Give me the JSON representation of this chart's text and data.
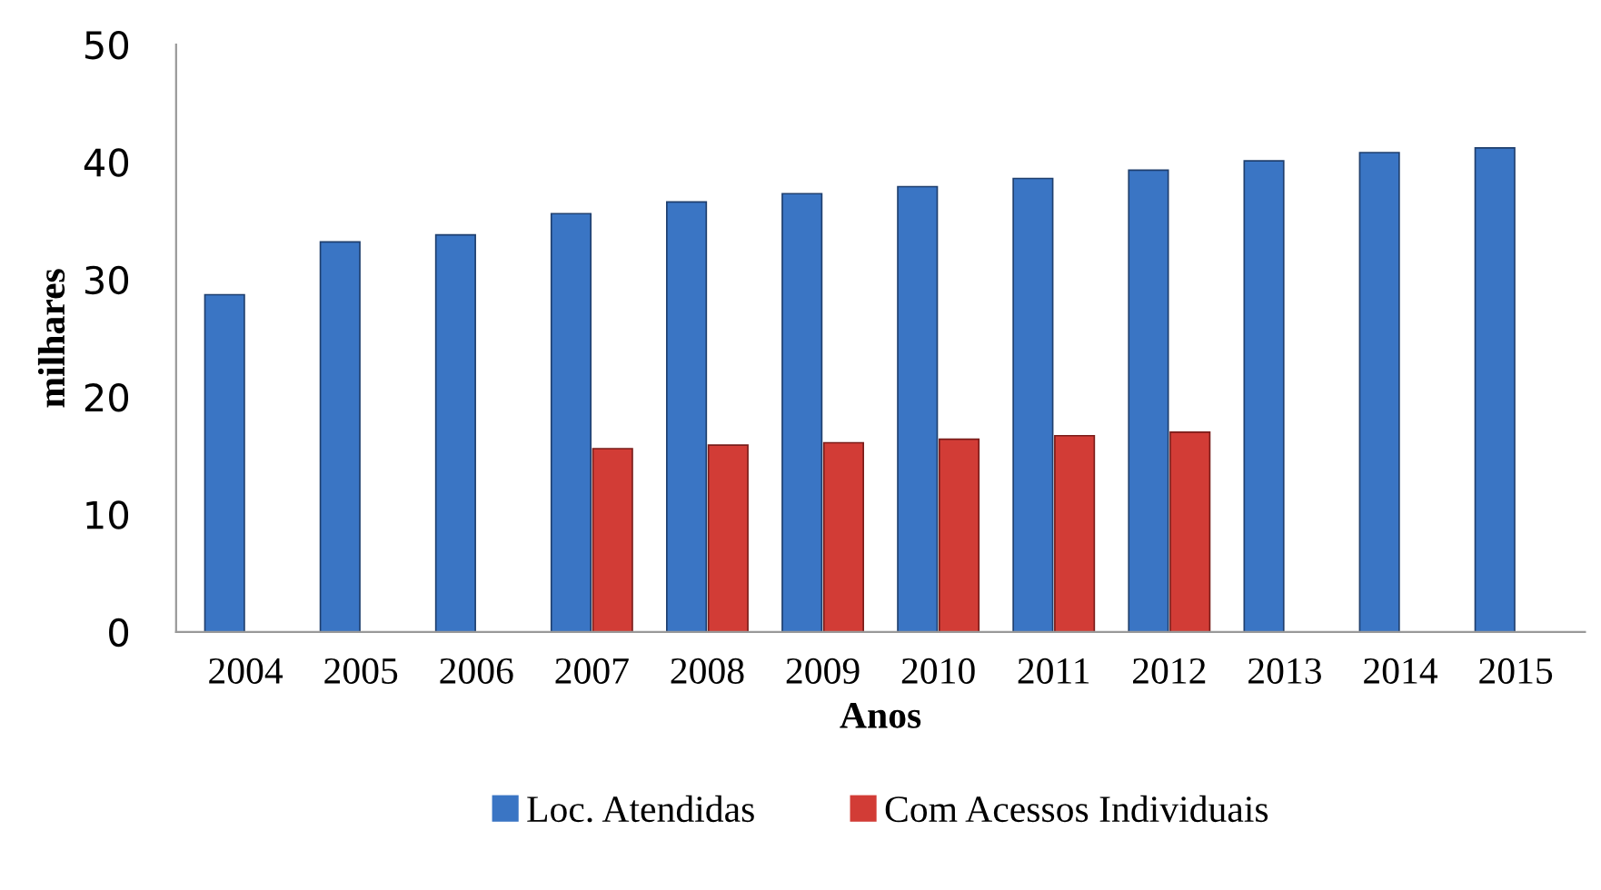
{
  "chart_data": {
    "type": "bar",
    "xlabel": "Anos",
    "ylabel": "milhares",
    "categories": [
      "2004",
      "2005",
      "2006",
      "2007",
      "2008",
      "2009",
      "2010",
      "2011",
      "2012",
      "2013",
      "2014",
      "2015"
    ],
    "series": [
      {
        "name": "Loc. Atendidas",
        "color": "#3a75c4",
        "values": [
          28.7,
          33.2,
          33.8,
          35.6,
          36.6,
          37.3,
          37.9,
          38.6,
          39.3,
          40.1,
          40.8,
          41.2
        ]
      },
      {
        "name": "Com Acessos Individuais",
        "color": "#d23c36",
        "values": [
          null,
          null,
          null,
          15.6,
          15.9,
          16.1,
          16.4,
          16.7,
          17.0,
          null,
          null,
          null
        ]
      }
    ],
    "ylim": [
      0,
      50
    ],
    "yticks": [
      0,
      10,
      20,
      30,
      40,
      50
    ],
    "grid": false,
    "legend": "bottom"
  }
}
